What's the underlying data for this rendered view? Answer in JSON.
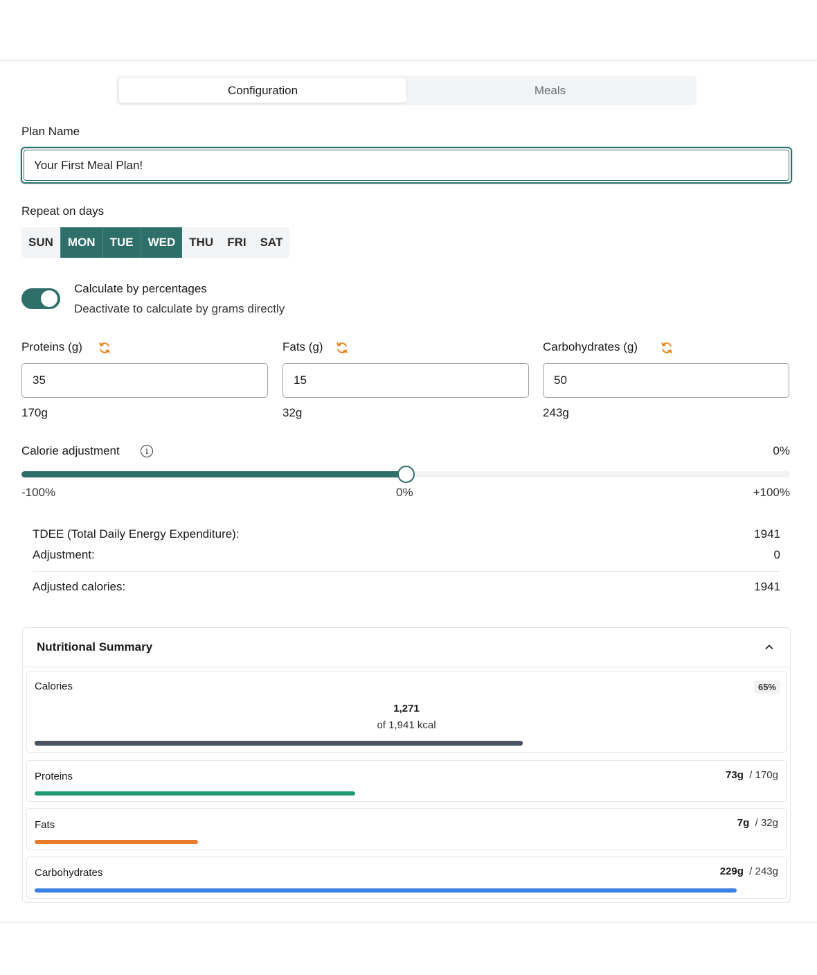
{
  "tabs": [
    {
      "label": "Configuration",
      "active": true
    },
    {
      "label": "Meals",
      "active": false
    }
  ],
  "plan_name": {
    "label": "Plan Name",
    "value": "Your First Meal Plan!"
  },
  "repeat": {
    "label": "Repeat on days",
    "days": [
      {
        "label": "SUN",
        "selected": false
      },
      {
        "label": "MON",
        "selected": true
      },
      {
        "label": "TUE",
        "selected": true
      },
      {
        "label": "WED",
        "selected": true
      },
      {
        "label": "THU",
        "selected": false
      },
      {
        "label": "FRI",
        "selected": false
      },
      {
        "label": "SAT",
        "selected": false
      }
    ]
  },
  "percentages": {
    "title": "Calculate by percentages",
    "subtitle": "Deactivate to calculate by grams directly",
    "enabled": true
  },
  "macros": [
    {
      "label": "Proteins (g)",
      "value": "35",
      "grams": "170g",
      "icon": "refresh-icon"
    },
    {
      "label": "Fats (g)",
      "value": "15",
      "grams": "32g",
      "icon": "refresh-icon"
    },
    {
      "label": "Carbohydrates (g)",
      "value": "50",
      "grams": "243g",
      "icon": "refresh-icon"
    }
  ],
  "calorie_adjustment": {
    "label": "Calorie adjustment",
    "value_text": "0%",
    "value": 0,
    "min_label": "-100%",
    "mid_label": "0%",
    "max_label": "+100%"
  },
  "energy": {
    "tdee_label": "TDEE (Total Daily Energy Expenditure):",
    "tdee_value": "1941",
    "adjustment_label": "Adjustment:",
    "adjustment_value": "0",
    "adjusted_label": "Adjusted calories:",
    "adjusted_value": "1941"
  },
  "summary": {
    "title": "Nutritional Summary",
    "calories": {
      "label": "Calories",
      "percent": "65%",
      "value": "1,271",
      "of": "of 1,941 kcal",
      "fraction": 0.655,
      "color": "#4a5561"
    },
    "items": [
      {
        "label": "Proteins",
        "current": "73g",
        "total": "/ 170g",
        "fraction": 0.43,
        "color": "#1f9a6e"
      },
      {
        "label": "Fats",
        "current": "7g",
        "total": "/ 32g",
        "fraction": 0.219,
        "color": "#ea7a2c"
      },
      {
        "label": "Carbohydrates",
        "current": "229g",
        "total": "/ 243g",
        "fraction": 0.942,
        "color": "#3b82e6"
      }
    ]
  },
  "colors": {
    "accent": "#2f6f6a",
    "refresh": "#e8841f"
  }
}
